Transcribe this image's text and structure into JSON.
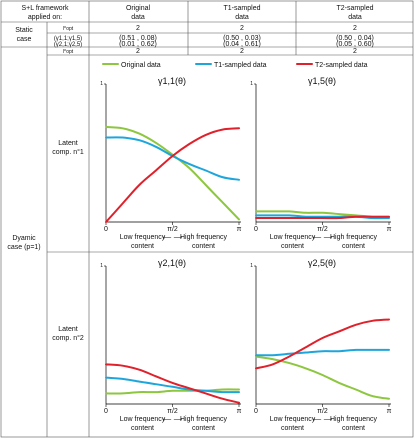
{
  "colors": {
    "original": "#8dc63f",
    "t1": "#1ea6dc",
    "t2": "#e0202a"
  },
  "header": {
    "framework": [
      "S+L framework",
      "applied on:"
    ],
    "columns": [
      [
        "Original",
        "data"
      ],
      [
        "T1-sampled",
        "data"
      ],
      [
        "T2-sampled",
        "data"
      ]
    ]
  },
  "static_case": {
    "label": [
      "Static",
      "case"
    ],
    "row1": {
      "label": "l^opt",
      "values": [
        "2",
        "2",
        "2"
      ]
    },
    "row2": {
      "labels": [
        "(γ1,1;γ1,5)",
        "(γ2,1;γ2,5)"
      ],
      "values": [
        [
          "(0.51 , 0.08)",
          "(0.50 , 0.03)",
          "(0.50 , 0.04)"
        ],
        [
          "(0.01 , 0.62)",
          "(0.04 , 0.61)",
          "(0.05 , 0.60)"
        ]
      ]
    }
  },
  "dynamic_case": {
    "label": [
      "Dyamic",
      "case (p=1)"
    ],
    "lopt": {
      "label": "l^opt",
      "values": [
        "2",
        "2",
        "2"
      ]
    },
    "components": [
      {
        "label": [
          "Latent",
          "comp. n°1"
        ]
      },
      {
        "label": [
          "Latent",
          "comp. n°2"
        ]
      }
    ]
  },
  "legend": [
    "Original data",
    "T1-sampled data",
    "T2-sampled data"
  ],
  "axis_text": {
    "x_ticks": [
      "0",
      "π/2",
      "π"
    ],
    "y_tick_top": "1",
    "y_tick_zero": "0",
    "low": [
      "Low frequency",
      "content"
    ],
    "high": [
      "High frequency",
      "content"
    ]
  },
  "chart_data": [
    {
      "type": "line",
      "title": "γ1,1(θ)",
      "x": [
        0,
        0.125,
        0.25,
        0.375,
        0.5,
        0.625,
        0.75,
        0.875,
        1.0
      ],
      "xlabel": "θ",
      "ylim": [
        0,
        1
      ],
      "series": [
        {
          "name": "Original data",
          "values": [
            0.72,
            0.71,
            0.67,
            0.6,
            0.51,
            0.41,
            0.28,
            0.15,
            0.02
          ]
        },
        {
          "name": "T1-sampled data",
          "values": [
            0.64,
            0.64,
            0.62,
            0.57,
            0.5,
            0.44,
            0.39,
            0.34,
            0.32
          ]
        },
        {
          "name": "T2-sampled data",
          "values": [
            0.0,
            0.14,
            0.28,
            0.39,
            0.5,
            0.59,
            0.66,
            0.7,
            0.71
          ]
        }
      ]
    },
    {
      "type": "line",
      "title": "γ1,5(θ)",
      "x": [
        0,
        0.125,
        0.25,
        0.375,
        0.5,
        0.625,
        0.75,
        0.875,
        1.0
      ],
      "xlabel": "θ",
      "ylim": [
        0,
        1
      ],
      "series": [
        {
          "name": "Original data",
          "values": [
            0.08,
            0.08,
            0.08,
            0.07,
            0.07,
            0.06,
            0.05,
            0.04,
            0.04
          ]
        },
        {
          "name": "T1-sampled data",
          "values": [
            0.05,
            0.05,
            0.05,
            0.04,
            0.04,
            0.04,
            0.04,
            0.03,
            0.03
          ]
        },
        {
          "name": "T2-sampled data",
          "values": [
            0.03,
            0.03,
            0.03,
            0.03,
            0.03,
            0.03,
            0.04,
            0.04,
            0.04
          ]
        }
      ]
    },
    {
      "type": "line",
      "title": "γ2,1(θ)",
      "x": [
        0,
        0.125,
        0.25,
        0.375,
        0.5,
        0.625,
        0.75,
        0.875,
        1.0
      ],
      "xlabel": "θ",
      "ylim": [
        0,
        1
      ],
      "series": [
        {
          "name": "Original data",
          "values": [
            0.08,
            0.08,
            0.09,
            0.09,
            0.1,
            0.1,
            0.1,
            0.11,
            0.11
          ]
        },
        {
          "name": "T1-sampled data",
          "values": [
            0.2,
            0.19,
            0.17,
            0.15,
            0.13,
            0.11,
            0.1,
            0.09,
            0.09
          ]
        },
        {
          "name": "T2-sampled data",
          "values": [
            0.3,
            0.29,
            0.26,
            0.21,
            0.16,
            0.12,
            0.08,
            0.04,
            0.01
          ]
        }
      ]
    },
    {
      "type": "line",
      "title": "γ2,5(θ)",
      "x": [
        0,
        0.125,
        0.25,
        0.375,
        0.5,
        0.625,
        0.75,
        0.875,
        1.0
      ],
      "xlabel": "θ",
      "ylim": [
        0,
        1
      ],
      "series": [
        {
          "name": "Original data",
          "values": [
            0.36,
            0.34,
            0.31,
            0.27,
            0.22,
            0.16,
            0.11,
            0.06,
            0.04
          ]
        },
        {
          "name": "T1-sampled data",
          "values": [
            0.37,
            0.37,
            0.38,
            0.39,
            0.4,
            0.4,
            0.41,
            0.41,
            0.41
          ]
        },
        {
          "name": "T2-sampled data",
          "values": [
            0.27,
            0.3,
            0.36,
            0.43,
            0.5,
            0.55,
            0.6,
            0.63,
            0.64
          ]
        }
      ]
    }
  ]
}
